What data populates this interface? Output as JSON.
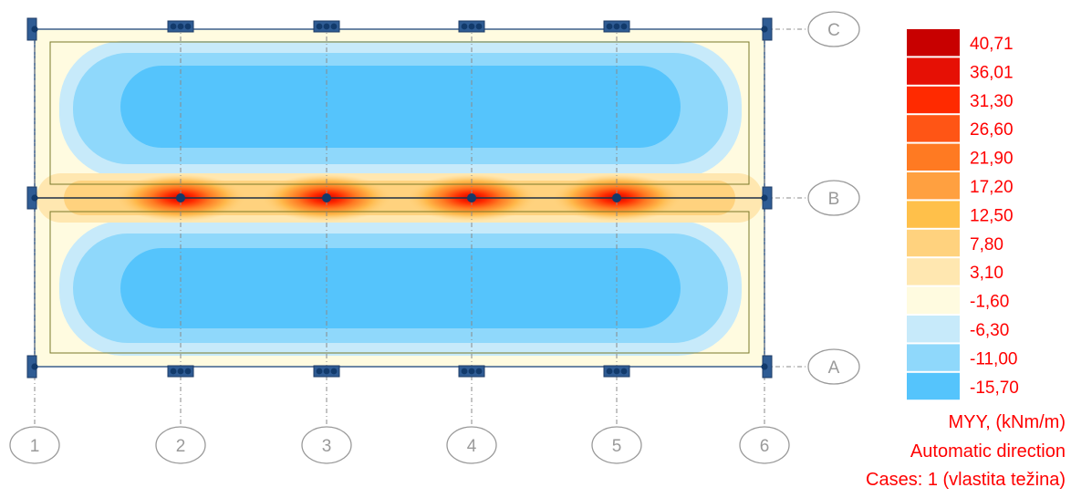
{
  "axes": {
    "vertical": [
      "1",
      "2",
      "3",
      "4",
      "5",
      "6"
    ],
    "horizontal": [
      "C",
      "B",
      "A"
    ]
  },
  "legend": {
    "levels": [
      {
        "value": "40,71",
        "color": "#c80000"
      },
      {
        "value": "36,01",
        "color": "#e61005"
      },
      {
        "value": "31,30",
        "color": "#ff2a00"
      },
      {
        "value": "26,60",
        "color": "#ff5515"
      },
      {
        "value": "21,90",
        "color": "#ff7a22"
      },
      {
        "value": "17,20",
        "color": "#ffa040"
      },
      {
        "value": "12,50",
        "color": "#ffc04a"
      },
      {
        "value": "7,80",
        "color": "#ffd27e"
      },
      {
        "value": "3,10",
        "color": "#ffe7b0"
      },
      {
        "value": "-1,60",
        "color": "#fffbe0"
      },
      {
        "value": "-6,30",
        "color": "#c7eafa"
      },
      {
        "value": "-11,00",
        "color": "#8fd8fb"
      },
      {
        "value": "-15,70",
        "color": "#55c4fc"
      }
    ]
  },
  "info": {
    "quantity": "MYY, (kNm/m)",
    "direction": "Automatic direction",
    "cases": "Cases: 1 (vlastita težina)"
  }
}
